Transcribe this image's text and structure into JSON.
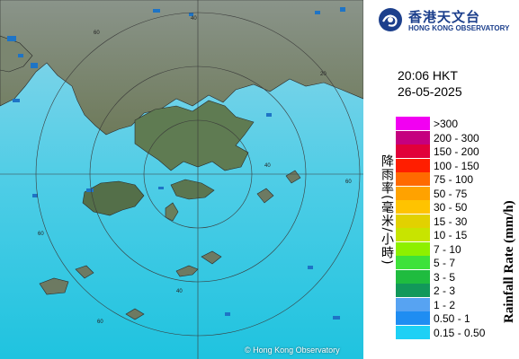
{
  "organization": {
    "name_cn": "香港天文台",
    "name_en": "HONG KONG OBSERVATORY"
  },
  "map": {
    "ring_labels": [
      "60",
      "40",
      "20",
      "60",
      "40",
      "60",
      "40",
      "60"
    ],
    "copyright": "© Hong Kong Observatory",
    "colors": {
      "sea_top": "#8fd6ea",
      "sea_bottom": "#24c6e0",
      "land": "#7f8b73",
      "echo": "#1e74c6"
    }
  },
  "time": "20:06 HKT",
  "date": "26-05-2025",
  "legend": {
    "title_cn": "降雨率(毫米/小時)",
    "title_en": "Rainfall Rate (mm/h)",
    "items": [
      {
        "label": ">300",
        "color": "#f200f2"
      },
      {
        "label": "200 - 300",
        "color": "#c5007f"
      },
      {
        "label": "150 - 200",
        "color": "#e1003a"
      },
      {
        "label": "100 - 150",
        "color": "#ff1e00"
      },
      {
        "label": "75 - 100",
        "color": "#ff6a00"
      },
      {
        "label": "50 - 75",
        "color": "#ffa200"
      },
      {
        "label": "30 - 50",
        "color": "#ffc300"
      },
      {
        "label": "15 - 30",
        "color": "#e2d100"
      },
      {
        "label": "10 - 15",
        "color": "#c8e400"
      },
      {
        "label": "7 - 10",
        "color": "#8ef000"
      },
      {
        "label": "5 - 7",
        "color": "#3ee23a"
      },
      {
        "label": "3 - 5",
        "color": "#1fbc3f"
      },
      {
        "label": "2 - 3",
        "color": "#12985a"
      },
      {
        "label": "1 - 2",
        "color": "#57a3f2"
      },
      {
        "label": "0.50 - 1",
        "color": "#1f8df2"
      },
      {
        "label": "0.15 - 0.50",
        "color": "#1ed0f5"
      }
    ]
  }
}
